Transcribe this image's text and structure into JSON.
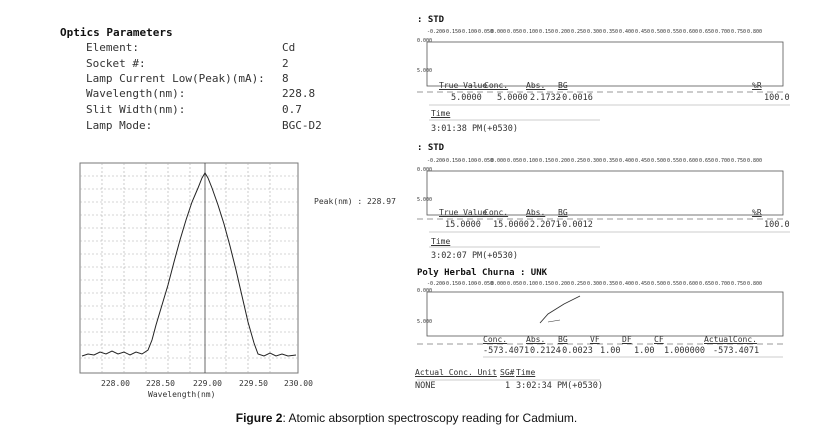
{
  "optics": {
    "title": "Optics Parameters",
    "rows": [
      {
        "label": "Element:",
        "value": "Cd"
      },
      {
        "label": "Socket #:",
        "value": "2"
      },
      {
        "label": "Lamp Current Low(Peak)(mA):",
        "value": "8"
      },
      {
        "label": "Wavelength(nm):",
        "value": "228.8"
      },
      {
        "label": "Slit Width(nm):",
        "value": "0.7"
      },
      {
        "label": "Lamp Mode:",
        "value": "BGC-D2"
      }
    ]
  },
  "peak_plot": {
    "peak_label": "Peak(nm) : 228.97",
    "xlabel": "Wavelength(nm)",
    "xticks": [
      "228.00",
      "228.50",
      "229.00",
      "229.50",
      "230.00"
    ]
  },
  "scale_ticks": [
    "-0.200",
    "-0.150",
    "-0.100",
    "-0.050",
    "0.000",
    "0.050",
    "0.100",
    "0.150",
    "0.200",
    "0.250",
    "0.300",
    "0.350",
    "0.400",
    "0.450",
    "0.500",
    "0.550",
    "0.600",
    "0.650",
    "0.700",
    "0.750",
    "0.800"
  ],
  "readings": [
    {
      "title": ": STD",
      "y_top": "0.000",
      "y_bottom": "5.000",
      "headers": {
        "tv": "True Value",
        "conc": "Conc.",
        "abs": "Abs.",
        "bg": "BG",
        "rsd": "%R"
      },
      "values": {
        "tv": "5.0000",
        "conc": "5.0000",
        "abs": "2.1732",
        "bg": "-0.0016",
        "rsd": "100.0"
      },
      "time_label": "Time",
      "time": "3:01:38 PM(+0530)"
    },
    {
      "title": ": STD",
      "y_top": "0.000",
      "y_bottom": "5.000",
      "headers": {
        "tv": "True Value",
        "conc": "Conc.",
        "abs": "Abs.",
        "bg": "BG",
        "rsd": "%R"
      },
      "values": {
        "tv": "15.0000",
        "conc": "15.0000",
        "abs": "2.2071",
        "bg": "-0.0012",
        "rsd": "100.0"
      },
      "time_label": "Time",
      "time": "3:02:07 PM(+0530)"
    }
  ],
  "sample": {
    "title": "Poly Herbal Churna : UNK",
    "y_top": "0.000",
    "y_bottom": "5.000",
    "headers": {
      "conc": "Conc.",
      "abs": "Abs.",
      "bg": "BG",
      "vf": "VF",
      "df": "DF",
      "cf": "CF",
      "actual": "ActualConc."
    },
    "values": {
      "conc": "-573.4071",
      "abs": "0.2124",
      "bg": "-0.0023",
      "vf": "1.00",
      "df": "1.00",
      "cf": "1.000000",
      "actual": "-573.4071"
    },
    "unit_header": "Actual Conc. Unit",
    "sg_header": "SG#",
    "time_header": "Time",
    "unit": "NONE",
    "sg": "1",
    "time": "3:02:34 PM(+0530)"
  },
  "caption": {
    "label": "Figure 2",
    "text": ": Atomic absorption spectroscopy reading for Cadmium."
  }
}
